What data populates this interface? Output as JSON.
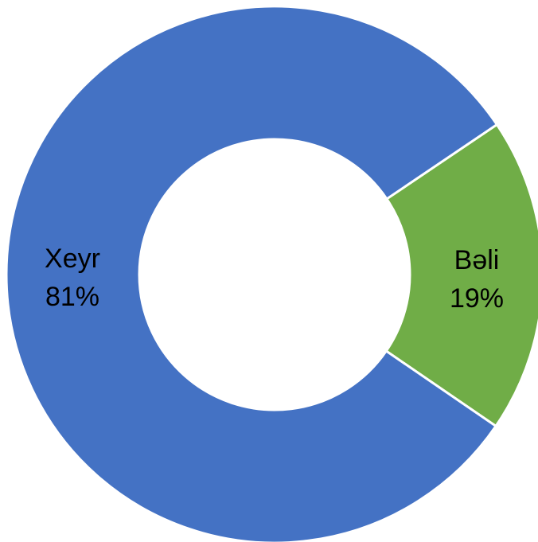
{
  "chart_data": {
    "type": "pie",
    "variant": "donut",
    "title": "",
    "slices": [
      {
        "label": "Bəli",
        "value": 19,
        "value_label": "19%",
        "color": "#70AD47"
      },
      {
        "label": "Xeyr",
        "value": 81,
        "value_label": "81%",
        "color": "#4472C4"
      }
    ],
    "legend": "none",
    "background": "#FFFFFF",
    "separator_color": "#FFFFFF"
  }
}
